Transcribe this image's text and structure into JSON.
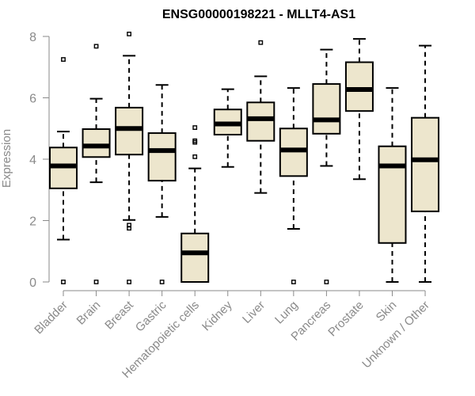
{
  "chart_data": {
    "type": "boxplot",
    "title": "ENSG00000198221 - MLLT4-AS1",
    "xlabel": "",
    "ylabel": "Expression",
    "ylim": [
      0,
      8.3
    ],
    "yticks": [
      0,
      2,
      4,
      6,
      8
    ],
    "grid": false,
    "colors": {
      "box_fill": "#ede6cd",
      "stroke": "#000000",
      "axis": "#8a8a8a",
      "median": "#000000"
    },
    "categories": [
      "Bladder",
      "Brain",
      "Breast",
      "Gastric",
      "Hematopoietic cells",
      "Kidney",
      "Liver",
      "Lung",
      "Pancreas",
      "Prostate",
      "Skin",
      "Unknown / Other"
    ],
    "boxes": [
      {
        "name": "Bladder",
        "whisker_low": 1.38,
        "q1": 3.05,
        "median": 3.78,
        "q3": 4.38,
        "whisker_high": 4.9,
        "outliers": [
          0.0,
          7.25
        ]
      },
      {
        "name": "Brain",
        "whisker_low": 3.25,
        "q1": 4.07,
        "median": 4.43,
        "q3": 4.98,
        "whisker_high": 5.97,
        "outliers": [
          0.0,
          7.68
        ]
      },
      {
        "name": "Breast",
        "whisker_low": 2.02,
        "q1": 4.15,
        "median": 5.0,
        "q3": 5.68,
        "whisker_high": 7.37,
        "outliers": [
          0.0,
          1.75,
          1.85,
          8.08
        ]
      },
      {
        "name": "Gastric",
        "whisker_low": 2.12,
        "q1": 3.3,
        "median": 4.28,
        "q3": 4.85,
        "whisker_high": 6.42,
        "outliers": [
          0.0
        ]
      },
      {
        "name": "Hematopoietic cells",
        "whisker_low": 0.0,
        "q1": 0.0,
        "median": 0.95,
        "q3": 1.58,
        "whisker_high": 3.7,
        "outliers": [
          4.08,
          4.55,
          4.6,
          5.03
        ]
      },
      {
        "name": "Kidney",
        "whisker_low": 3.75,
        "q1": 4.8,
        "median": 5.15,
        "q3": 5.62,
        "whisker_high": 6.28,
        "outliers": []
      },
      {
        "name": "Liver",
        "whisker_low": 2.9,
        "q1": 4.6,
        "median": 5.32,
        "q3": 5.85,
        "whisker_high": 6.7,
        "outliers": [
          7.8
        ]
      },
      {
        "name": "Lung",
        "whisker_low": 1.73,
        "q1": 3.45,
        "median": 4.3,
        "q3": 5.0,
        "whisker_high": 6.32,
        "outliers": [
          0.0
        ]
      },
      {
        "name": "Pancreas",
        "whisker_low": 3.78,
        "q1": 4.83,
        "median": 5.28,
        "q3": 6.45,
        "whisker_high": 7.57,
        "outliers": [
          0.0
        ]
      },
      {
        "name": "Prostate",
        "whisker_low": 3.35,
        "q1": 5.57,
        "median": 6.27,
        "q3": 7.16,
        "whisker_high": 7.92,
        "outliers": []
      },
      {
        "name": "Skin",
        "whisker_low": 0.0,
        "q1": 1.27,
        "median": 3.78,
        "q3": 4.42,
        "whisker_high": 6.32,
        "outliers": []
      },
      {
        "name": "Unknown / Other",
        "whisker_low": 0.0,
        "q1": 2.3,
        "median": 3.98,
        "q3": 5.35,
        "whisker_high": 7.7,
        "outliers": []
      }
    ]
  }
}
